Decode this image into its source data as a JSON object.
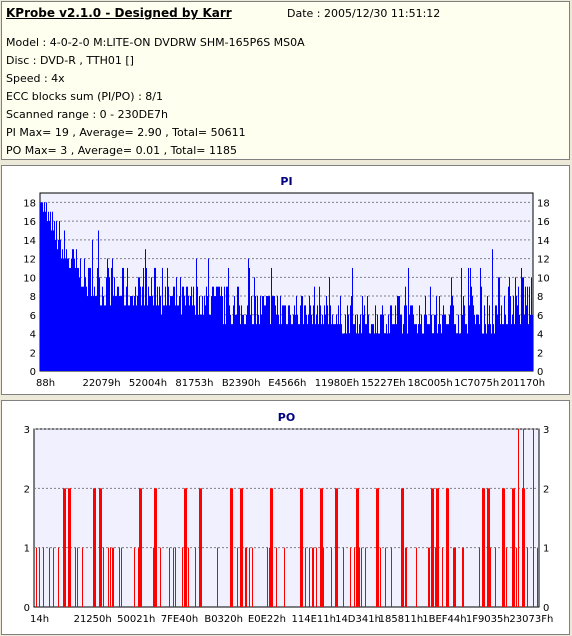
{
  "header": {
    "title": "KProbe v2.1.0 - Designed by Karr",
    "date": "Date : 2005/12/30 11:51:12",
    "lines": [
      "Model : 4-0-2-0 M:LITE-ON DVDRW SHM-165P6S MS0A",
      "Disc : DVD-R , TTH01 []",
      "Speed : 4x",
      "ECC blocks sum (PI/PO) : 8/1",
      "Scanned range : 0 - 230DE7h",
      "PI Max= 19 , Average= 2.90 , Total= 50611",
      "PO Max= 3 , Average= 0.01 , Total= 1185"
    ]
  },
  "colors": {
    "pi": "#0000ff",
    "po": "#ff0000",
    "plot_bg": "#f0f0ff",
    "title": "#000080"
  },
  "chart_data": [
    {
      "type": "bar",
      "title": "PI",
      "xlabel": "",
      "ylabel": "",
      "ylim": [
        0,
        19
      ],
      "yticks": [
        0,
        2,
        4,
        6,
        8,
        10,
        12,
        14,
        16,
        18
      ],
      "xtick_labels": [
        "88h",
        "22079h",
        "52004h",
        "81753h",
        "B2390h",
        "E4566h",
        "11980Eh",
        "15227Eh",
        "18C005h",
        "1C7075h",
        "201170h"
      ],
      "x_range": [
        "0h",
        "230DE7h"
      ],
      "grid": true,
      "max": 19,
      "average": 2.9,
      "total": 50611,
      "profile_min": [
        18,
        14,
        11,
        9,
        8,
        7,
        7,
        7,
        7,
        7,
        6,
        6,
        6,
        6,
        5,
        5,
        5,
        5,
        5,
        5,
        5,
        5,
        5,
        5,
        4,
        4,
        4,
        4,
        4,
        4,
        4,
        4,
        4,
        4,
        4,
        4,
        4,
        5,
        5,
        5
      ],
      "profile_max": [
        19,
        17,
        15,
        13,
        12,
        12,
        12,
        11,
        11,
        11,
        11,
        10,
        10,
        10,
        10,
        9,
        9,
        9,
        9,
        9,
        9,
        9,
        9,
        8,
        8,
        8,
        8,
        8,
        8,
        8,
        8,
        8,
        8,
        9,
        9,
        9,
        10,
        11,
        12,
        12
      ]
    },
    {
      "type": "bar",
      "title": "PO",
      "xlabel": "",
      "ylabel": "",
      "ylim": [
        0,
        3
      ],
      "yticks": [
        0,
        1,
        2,
        3
      ],
      "xtick_labels": [
        "14h",
        "21250h",
        "50021h",
        "7FE40h",
        "B0320h",
        "E0E22h",
        "114E11h",
        "14D341h",
        "185811h",
        "1BEF44h",
        "1F9035h",
        "23073Fh"
      ],
      "x_range": [
        "0h",
        "23073Fh"
      ],
      "grid": true,
      "max": 3,
      "average": 0.01,
      "total": 1185,
      "events_at_2": [
        0.06,
        0.07,
        0.12,
        0.13,
        0.21,
        0.24,
        0.3,
        0.33,
        0.39,
        0.41,
        0.47,
        0.53,
        0.57,
        0.6,
        0.64,
        0.68,
        0.73,
        0.79,
        0.8,
        0.82,
        0.89,
        0.9,
        0.93,
        0.95,
        0.97
      ],
      "events_at_3": [
        0.96,
        0.97,
        0.99
      ]
    }
  ]
}
